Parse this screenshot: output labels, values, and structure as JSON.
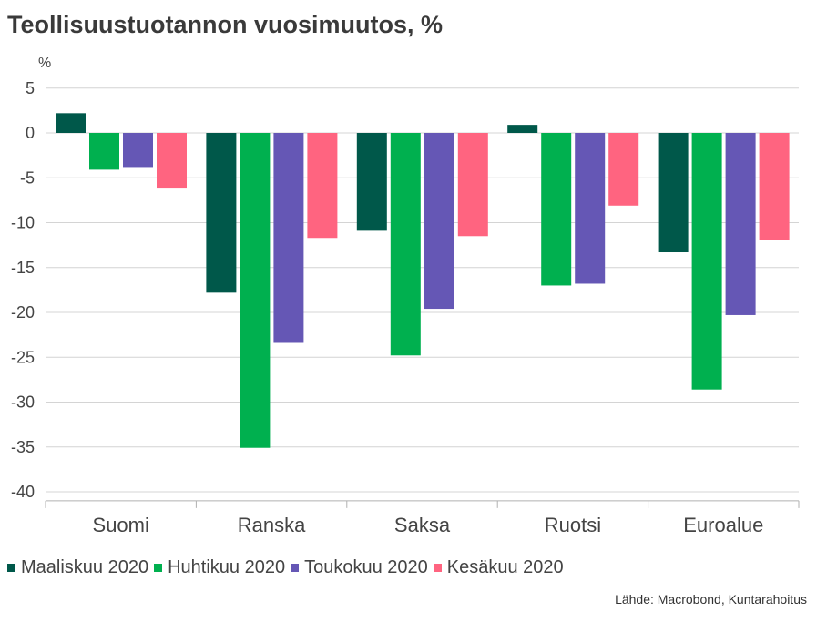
{
  "title": "Teollisuustuotannon vuosimuutos, %",
  "source": "Lähde: Macrobond, Kuntarahoitus",
  "chart_data": {
    "type": "bar",
    "unit_label": "%",
    "categories": [
      "Suomi",
      "Ranska",
      "Saksa",
      "Ruotsi",
      "Euroalue"
    ],
    "series": [
      {
        "name": "Maaliskuu 2020",
        "color": "#00584a",
        "values": [
          2.2,
          -17.8,
          -10.9,
          0.9,
          -13.3
        ]
      },
      {
        "name": "Huhtikuu 2020",
        "color": "#00b04f",
        "values": [
          -4.1,
          -35.1,
          -24.8,
          -17.0,
          -28.6
        ]
      },
      {
        "name": "Toukokuu 2020",
        "color": "#6557b5",
        "values": [
          -3.8,
          -23.4,
          -19.6,
          -16.8,
          -20.3
        ]
      },
      {
        "name": "Kesäkuu 2020",
        "color": "#ff6480",
        "values": [
          -6.1,
          -11.7,
          -11.5,
          -8.1,
          -11.9
        ]
      }
    ],
    "yticks": [
      5,
      0,
      -5,
      -10,
      -15,
      -20,
      -25,
      -30,
      -35,
      -40
    ],
    "ylim": [
      -41,
      5
    ],
    "grid": true,
    "legend_position": "bottom-left"
  }
}
